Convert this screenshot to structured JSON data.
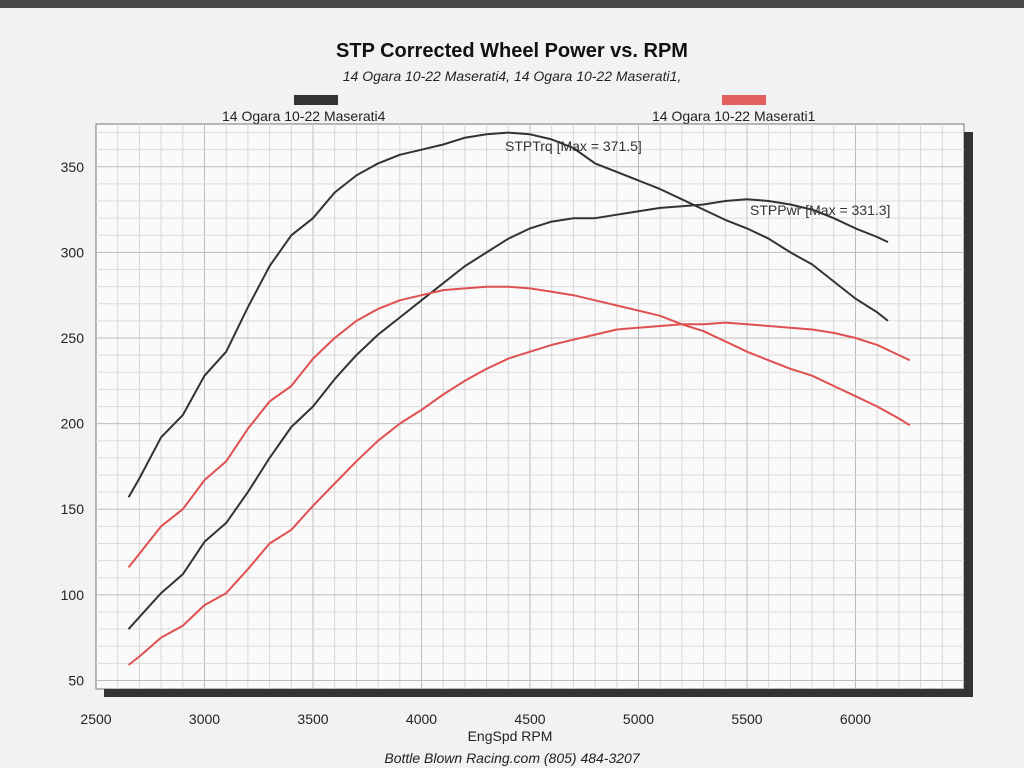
{
  "chart_data": {
    "type": "line",
    "title": "STP Corrected Wheel Power vs. RPM",
    "subtitle": "14 Ogara  10-22 Maserati4, 14 Ogara  10-22 Maserati1,",
    "xlabel": "EngSpd  RPM",
    "ylabel": "",
    "xlim": [
      2500,
      6500
    ],
    "ylim": [
      45,
      375
    ],
    "x_ticks": [
      2500,
      3000,
      3500,
      4000,
      4500,
      5000,
      5500,
      6000
    ],
    "y_ticks": [
      50,
      100,
      150,
      200,
      250,
      300,
      350
    ],
    "grid": true,
    "legend": [
      {
        "label": "14 Ogara  10-22 Maserati4",
        "color": "#333333",
        "position": "top-left"
      },
      {
        "label": "14 Ogara  10-22 Maserati1",
        "color": "#e46060",
        "position": "top-right"
      }
    ],
    "annotations": [
      {
        "text": "STPTrq [Max = 371.5]"
      },
      {
        "text": "STPPwr [Max = 331.3]"
      }
    ],
    "series": [
      {
        "name": "Maserati4 Torque",
        "color": "#333333",
        "x": [
          2650,
          2700,
          2800,
          2900,
          3000,
          3100,
          3200,
          3300,
          3400,
          3500,
          3600,
          3700,
          3800,
          3900,
          4000,
          4100,
          4200,
          4300,
          4400,
          4500,
          4600,
          4700,
          4800,
          4900,
          5000,
          5100,
          5200,
          5300,
          5400,
          5500,
          5600,
          5700,
          5800,
          5900,
          6000,
          6100,
          6150
        ],
        "y": [
          157,
          168,
          192,
          205,
          228,
          242,
          268,
          292,
          310,
          320,
          335,
          345,
          352,
          357,
          360,
          363,
          367,
          369,
          370,
          369,
          366,
          361,
          352,
          347,
          342,
          337,
          331,
          325,
          319,
          314,
          308,
          300,
          293,
          283,
          273,
          265,
          260
        ]
      },
      {
        "name": "Maserati4 Power",
        "color": "#333333",
        "x": [
          2650,
          2700,
          2800,
          2900,
          3000,
          3100,
          3200,
          3300,
          3400,
          3500,
          3600,
          3700,
          3800,
          3900,
          4000,
          4100,
          4200,
          4300,
          4400,
          4500,
          4600,
          4700,
          4800,
          4900,
          5000,
          5100,
          5200,
          5300,
          5400,
          5500,
          5600,
          5700,
          5800,
          5900,
          6000,
          6100,
          6150
        ],
        "y": [
          80,
          87,
          101,
          112,
          131,
          142,
          160,
          180,
          198,
          210,
          226,
          240,
          252,
          262,
          272,
          282,
          292,
          300,
          308,
          314,
          318,
          320,
          320,
          322,
          324,
          326,
          327,
          328,
          330,
          331,
          330,
          328,
          325,
          320,
          314,
          309,
          306
        ]
      },
      {
        "name": "Maserati1 Torque",
        "color": "#e05050",
        "x": [
          2650,
          2700,
          2800,
          2900,
          3000,
          3100,
          3200,
          3300,
          3400,
          3500,
          3600,
          3700,
          3800,
          3900,
          4000,
          4100,
          4200,
          4300,
          4400,
          4500,
          4600,
          4700,
          4800,
          4900,
          5000,
          5100,
          5200,
          5300,
          5400,
          5500,
          5600,
          5700,
          5800,
          5900,
          6000,
          6100,
          6200,
          6250
        ],
        "y": [
          116,
          124,
          140,
          150,
          167,
          178,
          197,
          213,
          222,
          238,
          250,
          260,
          267,
          272,
          275,
          278,
          279,
          280,
          280,
          279,
          277,
          275,
          272,
          269,
          266,
          263,
          258,
          254,
          248,
          242,
          237,
          232,
          228,
          222,
          216,
          210,
          203,
          199
        ]
      },
      {
        "name": "Maserati1 Power",
        "color": "#e05050",
        "x": [
          2650,
          2700,
          2800,
          2900,
          3000,
          3100,
          3200,
          3300,
          3400,
          3500,
          3600,
          3700,
          3800,
          3900,
          4000,
          4100,
          4200,
          4300,
          4400,
          4500,
          4600,
          4700,
          4800,
          4900,
          5000,
          5100,
          5200,
          5300,
          5400,
          5500,
          5600,
          5700,
          5800,
          5900,
          6000,
          6100,
          6200,
          6250
        ],
        "y": [
          59,
          64,
          75,
          82,
          94,
          101,
          115,
          130,
          138,
          152,
          165,
          178,
          190,
          200,
          208,
          217,
          225,
          232,
          238,
          242,
          246,
          249,
          252,
          255,
          256,
          257,
          258,
          258,
          259,
          258,
          257,
          256,
          255,
          253,
          250,
          246,
          240,
          237
        ]
      }
    ]
  },
  "footer": "Bottle Blown Racing.com (805) 484-3207"
}
